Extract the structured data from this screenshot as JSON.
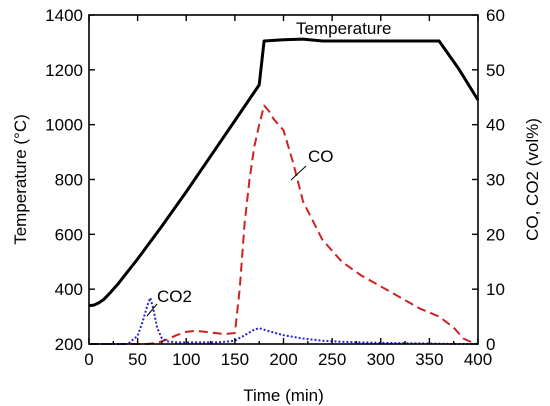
{
  "chart_data": {
    "type": "line",
    "xlabel": "Time (min)",
    "ylabel_left": "Temperature (°C)",
    "ylabel_right": "CO, CO2 (vol%)",
    "xlim": [
      0,
      400
    ],
    "ylim_left": [
      200,
      1400
    ],
    "ylim_right": [
      0,
      60
    ],
    "x_ticks": [
      0,
      50,
      100,
      150,
      200,
      250,
      300,
      350,
      400
    ],
    "y_left_ticks": [
      200,
      400,
      600,
      800,
      1000,
      1200,
      1400
    ],
    "y_right_ticks": [
      0,
      10,
      20,
      30,
      40,
      50,
      60
    ],
    "series": [
      {
        "name": "Temperature",
        "axis": "left",
        "color": "#000000",
        "style": "solid",
        "x": [
          0,
          5,
          10,
          15,
          20,
          30,
          50,
          75,
          100,
          125,
          150,
          175,
          180,
          200,
          220,
          240,
          260,
          300,
          340,
          355,
          360,
          380,
          400
        ],
        "y": [
          340,
          342,
          350,
          362,
          380,
          420,
          510,
          630,
          755,
          885,
          1015,
          1145,
          1305,
          1310,
          1312,
          1305,
          1305,
          1305,
          1305,
          1305,
          1305,
          1205,
          1090
        ]
      },
      {
        "name": "CO",
        "axis": "right",
        "color": "#cc2222",
        "style": "dashed",
        "x": [
          0,
          40,
          60,
          70,
          80,
          90,
          100,
          110,
          120,
          130,
          140,
          150,
          155,
          160,
          165,
          170,
          175,
          180,
          185,
          190,
          195,
          200,
          210,
          220,
          240,
          260,
          280,
          300,
          320,
          340,
          360,
          375,
          385,
          395,
          400
        ],
        "y": [
          0,
          0,
          0,
          0.2,
          0.8,
          1.6,
          2.2,
          2.4,
          2.2,
          2.0,
          1.8,
          2.0,
          10,
          22,
          30,
          36,
          40,
          43.5,
          42.5,
          41.0,
          40.0,
          39.0,
          33,
          26,
          19,
          15,
          12.5,
          10.5,
          8.5,
          6.5,
          5.0,
          3.0,
          1.0,
          0.2,
          0
        ]
      },
      {
        "name": "CO2",
        "axis": "right",
        "color": "#2222dd",
        "style": "dotted",
        "x": [
          0,
          40,
          50,
          55,
          60,
          63,
          66,
          70,
          75,
          80,
          90,
          100,
          110,
          120,
          130,
          140,
          150,
          160,
          170,
          175,
          180,
          190,
          200,
          220,
          240,
          260,
          300,
          350,
          380,
          400
        ],
        "y": [
          0,
          0,
          1.5,
          4,
          7.0,
          8.4,
          6.5,
          3,
          1.0,
          0.5,
          0.3,
          0.3,
          0.3,
          0.3,
          0.3,
          0.4,
          0.6,
          1.6,
          2.6,
          2.9,
          2.6,
          2.1,
          1.6,
          1.0,
          0.6,
          0.4,
          0.2,
          0.1,
          0,
          0
        ]
      }
    ],
    "annotations": [
      {
        "text": "Temperature",
        "series": "Temperature"
      },
      {
        "text": "CO",
        "series": "CO"
      },
      {
        "text": "CO2",
        "series": "CO2"
      }
    ]
  }
}
